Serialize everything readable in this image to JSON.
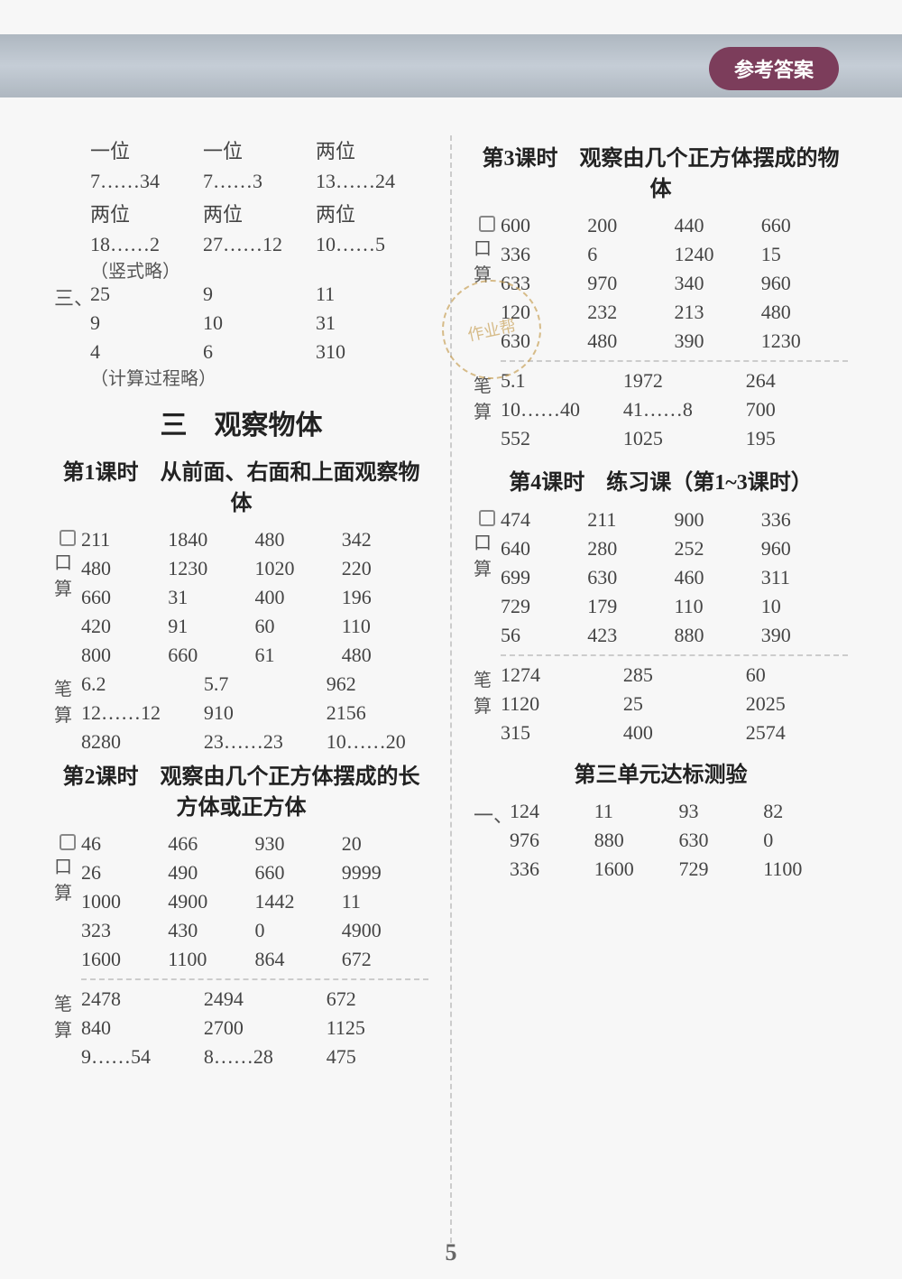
{
  "header_badge": "参考答案",
  "page_number": "5",
  "watermark_text": "作业帮",
  "left": {
    "top_block": {
      "row1": [
        "一位",
        "一位",
        "两位"
      ],
      "row2": [
        "7……34",
        "7……3",
        "13……24"
      ],
      "row3": [
        "两位",
        "两位",
        "两位"
      ],
      "row4": [
        "18……2",
        "27……12",
        "10……5"
      ],
      "note1": "（竖式略）"
    },
    "san_label": "三、",
    "san_block": {
      "row1": [
        "25",
        "9",
        "11"
      ],
      "row2": [
        "9",
        "10",
        "31"
      ],
      "row3": [
        "4",
        "6",
        "310"
      ],
      "note": "（计算过程略）"
    },
    "big_title": "三　观察物体",
    "lesson1_title": "第1课时　从前面、右面和上面观察物体",
    "lesson1_kousuan_label": "口算",
    "lesson1_kousuan": [
      [
        "211",
        "1840",
        "480",
        "342"
      ],
      [
        "480",
        "1230",
        "1020",
        "220"
      ],
      [
        "660",
        "31",
        "400",
        "196"
      ],
      [
        "420",
        "91",
        "60",
        "110"
      ],
      [
        "800",
        "660",
        "61",
        "480"
      ]
    ],
    "lesson1_bisuan_label": "笔算",
    "lesson1_bisuan": [
      [
        "6.2",
        "5.7",
        "962"
      ],
      [
        "12……12",
        "910",
        "2156"
      ],
      [
        "8280",
        "23……23",
        "10……20"
      ]
    ],
    "lesson2_title": "第2课时　观察由几个正方体摆成的长方体或正方体",
    "lesson2_kousuan_label": "口算",
    "lesson2_kousuan": [
      [
        "46",
        "466",
        "930",
        "20"
      ],
      [
        "26",
        "490",
        "660",
        "9999"
      ],
      [
        "1000",
        "4900",
        "1442",
        "11"
      ],
      [
        "323",
        "430",
        "0",
        "4900"
      ],
      [
        "1600",
        "1100",
        "864",
        "672"
      ]
    ],
    "lesson2_bisuan_label": "笔算",
    "lesson2_bisuan": [
      [
        "2478",
        "2494",
        "672"
      ],
      [
        "840",
        "2700",
        "1125"
      ],
      [
        "9……54",
        "8……28",
        "475"
      ]
    ]
  },
  "right": {
    "lesson3_title": "第3课时　观察由几个正方体摆成的物体",
    "lesson3_kousuan_label": "口算",
    "lesson3_kousuan": [
      [
        "600",
        "200",
        "440",
        "660"
      ],
      [
        "336",
        "6",
        "1240",
        "15"
      ],
      [
        "633",
        "970",
        "340",
        "960"
      ],
      [
        "120",
        "232",
        "213",
        "480"
      ],
      [
        "630",
        "480",
        "390",
        "1230"
      ]
    ],
    "lesson3_bisuan_label": "笔算",
    "lesson3_bisuan": [
      [
        "5.1",
        "1972",
        "264"
      ],
      [
        "10……40",
        "41……8",
        "700"
      ],
      [
        "552",
        "1025",
        "195"
      ]
    ],
    "lesson4_title": "第4课时　练习课（第1~3课时）",
    "lesson4_kousuan_label": "口算",
    "lesson4_kousuan": [
      [
        "474",
        "211",
        "900",
        "336"
      ],
      [
        "640",
        "280",
        "252",
        "960"
      ],
      [
        "699",
        "630",
        "460",
        "311"
      ],
      [
        "729",
        "179",
        "110",
        "10"
      ],
      [
        "56",
        "423",
        "880",
        "390"
      ]
    ],
    "lesson4_bisuan_label": "笔算",
    "lesson4_bisuan": [
      [
        "1274",
        "285",
        "60"
      ],
      [
        "1120",
        "25",
        "2025"
      ],
      [
        "315",
        "400",
        "2574"
      ]
    ],
    "unit_test_title": "第三单元达标测验",
    "unit_test_label": "一、",
    "unit_test": [
      [
        "124",
        "11",
        "93",
        "82"
      ],
      [
        "976",
        "880",
        "630",
        "0"
      ],
      [
        "336",
        "1600",
        "729",
        "1100"
      ]
    ]
  }
}
